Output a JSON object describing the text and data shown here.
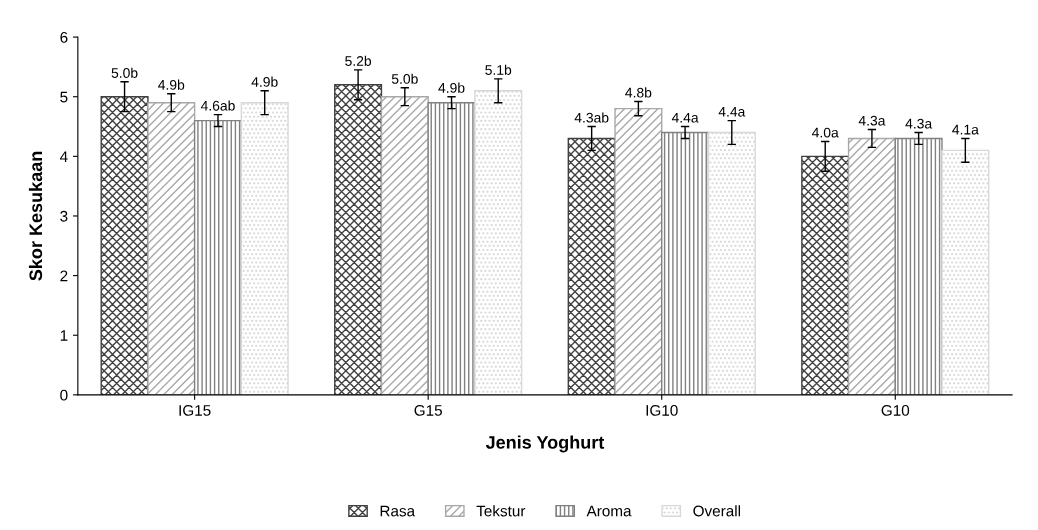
{
  "chart_data": {
    "type": "bar",
    "xlabel": "Jenis Yoghurt",
    "ylabel": "Skor Kesukaan",
    "categories": [
      "IG15",
      "G15",
      "IG10",
      "G10"
    ],
    "series": [
      {
        "name": "Rasa",
        "color": "#404040",
        "values": [
          5.0,
          5.2,
          4.3,
          4.0
        ],
        "errors": [
          0.25,
          0.25,
          0.2,
          0.25
        ],
        "value_labels": [
          "5.0b",
          "5.2b",
          "4.3ab",
          "4.0a"
        ]
      },
      {
        "name": "Tekstur",
        "color": "#a8a8a8",
        "values": [
          4.9,
          5.0,
          4.8,
          4.3
        ],
        "errors": [
          0.15,
          0.15,
          0.12,
          0.15
        ],
        "value_labels": [
          "4.9b",
          "5.0b",
          "4.8b",
          "4.3a"
        ]
      },
      {
        "name": "Aroma",
        "color": "#808080",
        "values": [
          4.6,
          4.9,
          4.4,
          4.3
        ],
        "errors": [
          0.1,
          0.1,
          0.1,
          0.1
        ],
        "value_labels": [
          "4.6ab",
          "4.9b",
          "4.4a",
          "4.3a"
        ]
      },
      {
        "name": "Overall",
        "color": "#d8d8d8",
        "values": [
          4.9,
          5.1,
          4.4,
          4.1
        ],
        "errors": [
          0.2,
          0.2,
          0.2,
          0.2
        ],
        "value_labels": [
          "4.9b",
          "5.1b",
          "4.4a",
          "4.1a"
        ]
      }
    ],
    "ylim": [
      0,
      6
    ],
    "yticks": [
      0,
      1,
      2,
      3,
      4,
      5,
      6
    ],
    "grid": false,
    "legend": "bottom"
  }
}
